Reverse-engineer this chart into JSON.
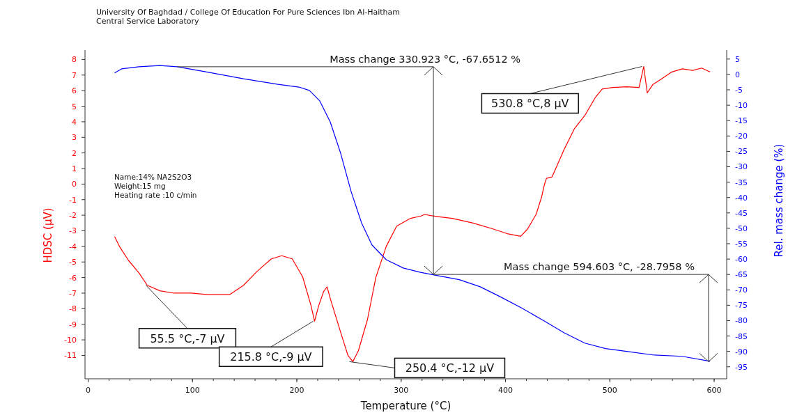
{
  "chart_data": {
    "type": "line",
    "title": "University Of Baghdad / College Of Education For Pure Sciences Ibn Al-Haitham",
    "subtitle": "Central Service Laboratory",
    "xlabel": "Temperature (°C)",
    "ylabel": "HDSC (µV)",
    "y2label": "Rel. mass change (%)",
    "xlim": [
      -3,
      612
    ],
    "xticks": [
      0,
      100,
      200,
      300,
      400,
      500,
      600
    ],
    "ylim": [
      -12.5,
      8.6
    ],
    "yticks": [
      -11,
      -10,
      -9,
      -8,
      -7,
      -6,
      -5,
      -4,
      -3,
      -2,
      -1,
      0,
      1,
      2,
      3,
      4,
      5,
      6,
      7,
      8
    ],
    "y2lim": [
      -98.9,
      7.9
    ],
    "y2ticks": [
      -95,
      -90,
      -85,
      -80,
      -75,
      -70,
      -65,
      -60,
      -55,
      -50,
      -45,
      -40,
      -35,
      -30,
      -25,
      -20,
      -15,
      -10,
      -5,
      0,
      5
    ],
    "grid": false,
    "legend": false,
    "marker": "none",
    "line_style": "solid",
    "series": [
      {
        "color": "#ff0000",
        "x": [
          25.4,
          30,
          38.7,
          48.7,
          56.7,
          68.8,
          82,
          98.8,
          115,
          135.5,
          148.9,
          162,
          175.6,
          185.6,
          195.6,
          205.6,
          213.6,
          217,
          221,
          225.7,
          229,
          232.3,
          242.4,
          249,
          253.7,
          259,
          267.7,
          275.7,
          285.7,
          295.7,
          309,
          319,
          322.4,
          332.4,
          349,
          369,
          389,
          402.5,
          414.5,
          421,
          429.3,
          434.6,
          437.3,
          439.3,
          444.6,
          449.3,
          456,
          466,
          476,
          486,
          492.7,
          502.7,
          516,
          528,
          532.5,
          535.8,
          541.4,
          549.4,
          559.4,
          569.4,
          579.4,
          588,
          596
        ],
        "values": [
          -3.37,
          -4.0,
          -4.9,
          -5.7,
          -6.5,
          -6.85,
          -7.0,
          -7.0,
          -7.1,
          -7.1,
          -6.5,
          -5.6,
          -4.8,
          -4.6,
          -4.8,
          -5.95,
          -7.8,
          -8.8,
          -7.8,
          -6.9,
          -6.6,
          -7.4,
          -9.6,
          -11.0,
          -11.4,
          -10.7,
          -8.7,
          -6.0,
          -4.0,
          -2.7,
          -2.2,
          -2.05,
          -1.95,
          -2.07,
          -2.2,
          -2.5,
          -2.9,
          -3.2,
          -3.35,
          -2.9,
          -1.95,
          -0.83,
          -0.03,
          0.37,
          0.46,
          1.17,
          2.2,
          3.55,
          4.4,
          5.55,
          6.1,
          6.2,
          6.25,
          6.2,
          7.55,
          5.86,
          6.4,
          6.75,
          7.2,
          7.4,
          7.3,
          7.45,
          7.2
        ]
      },
      {
        "color": "#0000ff",
        "axis": "y2",
        "x": [
          25.4,
          32,
          48.7,
          68.8,
          85.4,
          115.5,
          148.9,
          182,
          202,
          212,
          222,
          232,
          242,
          252,
          262,
          272,
          285.7,
          302,
          318.5,
          332.4,
          355.7,
          375.8,
          395.9,
          416,
          436,
          456,
          476,
          496,
          516,
          542.7,
          569.4,
          596
        ],
        "values": [
          0.5,
          1.8,
          2.5,
          2.9,
          2.5,
          0.7,
          -1.4,
          -3.2,
          -4.1,
          -5.2,
          -8.6,
          -15.4,
          -25.6,
          -38,
          -48.2,
          -55.4,
          -60.2,
          -62.9,
          -64.3,
          -65.2,
          -66.7,
          -69.0,
          -72.4,
          -76,
          -79.9,
          -83.9,
          -87.3,
          -89.1,
          -90.0,
          -91.2,
          -91.6,
          -93.2
        ]
      }
    ],
    "annotations": [
      {
        "text": "Mass change 330.923 °C,  -67.6512 %",
        "x": 330.923,
        "y": -5.8
      },
      {
        "text": "Mass change 594.603 °C,  -28.7958 %",
        "x": 594.603,
        "y": -11.4
      },
      {
        "text": "530.8 °C,8 μV",
        "x": 530.8,
        "y": 7.55
      },
      {
        "text": "55.5 °C,-7 μV",
        "x": 55.5,
        "y": -6.5
      },
      {
        "text": "215.8 °C,-9 μV",
        "x": 215.8,
        "y": -8.8
      },
      {
        "text": "250.4 °C,-12 μV",
        "x": 250.4,
        "y": -11.4
      },
      "Name:14% NA2S2O3",
      "Weight:15 mg",
      "Heating rate :10 c/min"
    ]
  }
}
